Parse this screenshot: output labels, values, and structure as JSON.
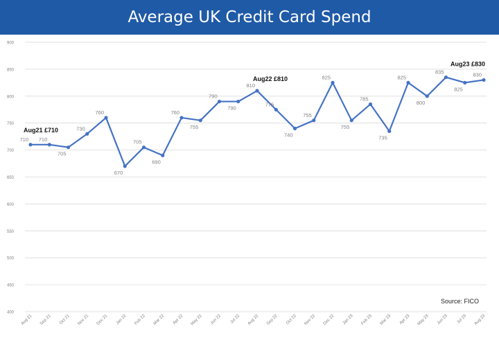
{
  "title": "Average UK Credit Card Spend",
  "source": "Source: FICO",
  "colors": {
    "banner": "#1f5aa6",
    "line": "#4472c4",
    "grid": "#d9d9d9",
    "tick": "#808080"
  },
  "chart_data": {
    "type": "line",
    "title": "Average UK Credit Card Spend",
    "xlabel": "",
    "ylabel": "",
    "ylim": [
      400,
      900
    ],
    "yticks": [
      400,
      450,
      500,
      550,
      600,
      650,
      700,
      750,
      800,
      850,
      900
    ],
    "grid": true,
    "categories": [
      "Aug 21",
      "Sep 21",
      "Oct 21",
      "Nov 21",
      "Dec 21",
      "Jan 22",
      "Feb 22",
      "Mar 22",
      "Apr 22",
      "May 22",
      "Jun 22",
      "Jul 22",
      "Aug 22",
      "Sep 22",
      "Oct 22",
      "Nov 22",
      "Dec 22",
      "Jan 23",
      "Feb 23",
      "Mar 23",
      "Apr 23",
      "May 23",
      "Jun 23",
      "Jul 23",
      "Aug 23"
    ],
    "series": [
      {
        "values": [
          710,
          710,
          705,
          730,
          760,
          670,
          705,
          690,
          760,
          755,
          790,
          790,
          810,
          775,
          740,
          755,
          825,
          755,
          785,
          735,
          825,
          800,
          835,
          825,
          830
        ],
        "labels": [
          "710",
          "710",
          "705",
          "730",
          "760",
          "670",
          "705",
          "690",
          "760",
          "755",
          "790",
          "790",
          "810",
          "775",
          "740",
          "755",
          "825",
          "755",
          "785",
          "735",
          "825",
          "800",
          "835",
          "825",
          "830"
        ]
      }
    ],
    "annotations": [
      {
        "index": 0,
        "text": "Aug21 £710"
      },
      {
        "index": 12,
        "text": "Aug22 £810"
      },
      {
        "index": 24,
        "text": "Aug23 £830"
      }
    ]
  }
}
